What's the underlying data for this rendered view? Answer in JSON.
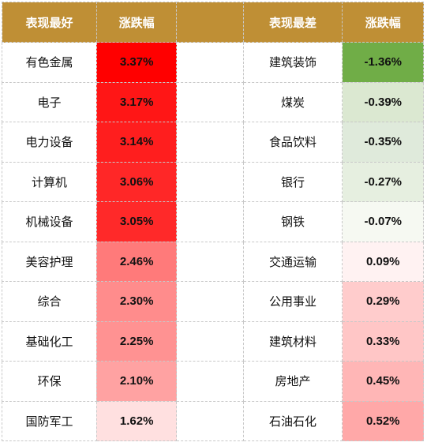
{
  "header": {
    "best_label": "表现最好",
    "best_change_label": "涨跌幅",
    "worst_label": "表现最差",
    "worst_change_label": "涨跌幅"
  },
  "rows": [
    {
      "best_name": "有色金属",
      "best_value": "3.37%",
      "best_color": "#ff0000",
      "worst_name": "建筑装饰",
      "worst_value": "-1.36%",
      "worst_color": "#70ad47"
    },
    {
      "best_name": "电子",
      "best_value": "3.17%",
      "best_color": "#ff1616",
      "worst_name": "煤炭",
      "worst_value": "-0.39%",
      "worst_color": "#dbe8d1"
    },
    {
      "best_name": "电力设备",
      "best_value": "3.14%",
      "best_color": "#ff1e1e",
      "worst_name": "食品饮料",
      "worst_value": "-0.35%",
      "worst_color": "#dfeadb"
    },
    {
      "best_name": "计算机",
      "best_value": "3.06%",
      "best_color": "#ff2727",
      "worst_name": "银行",
      "worst_value": "-0.27%",
      "worst_color": "#e6efe0"
    },
    {
      "best_name": "机械设备",
      "best_value": "3.05%",
      "best_color": "#ff2929",
      "worst_name": "钢铁",
      "worst_value": "-0.07%",
      "worst_color": "#f6f9f2"
    },
    {
      "best_name": "美容护理",
      "best_value": "2.46%",
      "best_color": "#ff7a7a",
      "worst_name": "交通运输",
      "worst_value": "0.09%",
      "worst_color": "#fff2f2"
    },
    {
      "best_name": "综合",
      "best_value": "2.30%",
      "best_color": "#ff8c8c",
      "worst_name": "公用事业",
      "worst_value": "0.29%",
      "worst_color": "#ffcccc"
    },
    {
      "best_name": "基础化工",
      "best_value": "2.25%",
      "best_color": "#ff9292",
      "worst_name": "建筑材料",
      "worst_value": "0.33%",
      "worst_color": "#ffc6c6"
    },
    {
      "best_name": "环保",
      "best_value": "2.10%",
      "best_color": "#ffa2a2",
      "worst_name": "房地产",
      "worst_value": "0.45%",
      "worst_color": "#ffb6b6"
    },
    {
      "best_name": "国防军工",
      "best_value": "1.62%",
      "best_color": "#ffe0e0",
      "worst_name": "石油石化",
      "worst_value": "0.52%",
      "worst_color": "#ffa8a8"
    }
  ]
}
